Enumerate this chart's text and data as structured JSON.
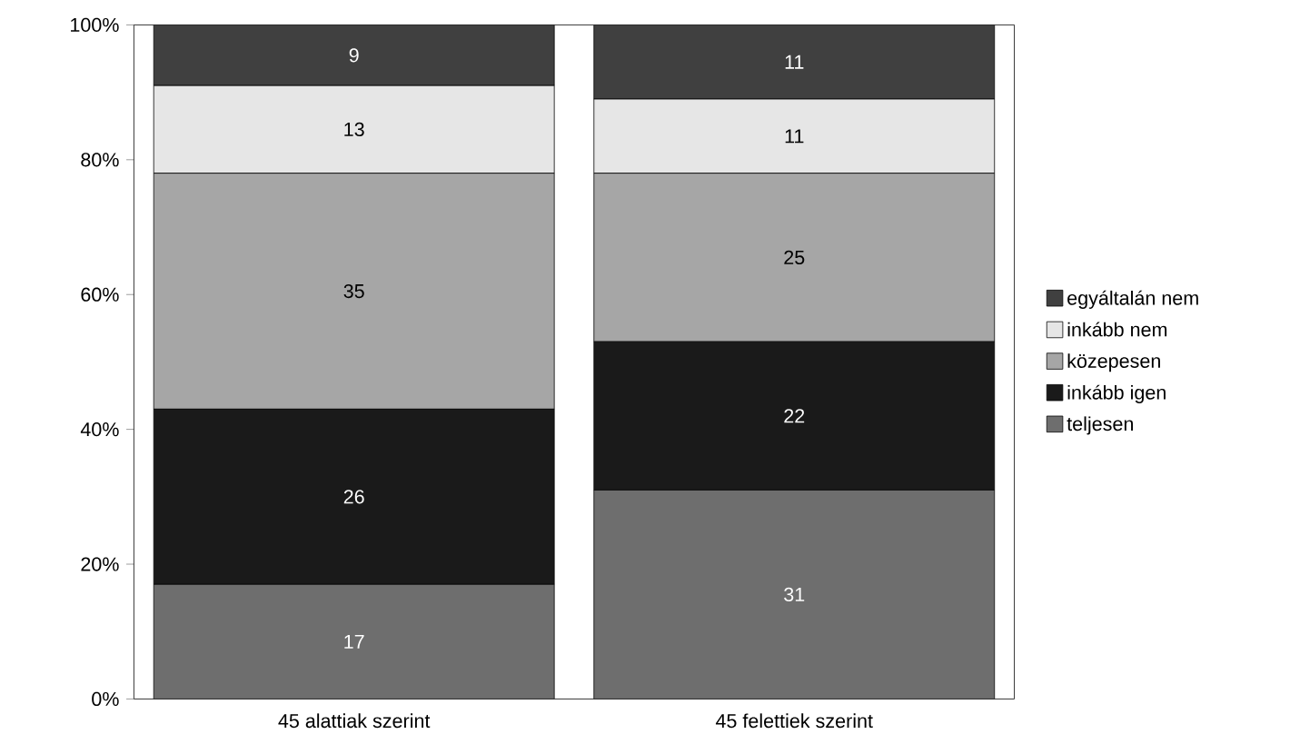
{
  "chart_data": {
    "type": "bar",
    "stacked": true,
    "data_labels": true,
    "legend": "right",
    "grid": false,
    "categories": [
      "45 alattiak szerint",
      "45 felettiek szerint"
    ],
    "ylim": [
      0,
      100
    ],
    "yticks": [
      {
        "value": 0,
        "label": "0%"
      },
      {
        "value": 20,
        "label": "20%"
      },
      {
        "value": 40,
        "label": "40%"
      },
      {
        "value": 60,
        "label": "60%"
      },
      {
        "value": 80,
        "label": "80%"
      },
      {
        "value": 100,
        "label": "100%"
      }
    ],
    "series": [
      {
        "name": "teljesen",
        "color": "#6e6e6e",
        "values": [
          17,
          31
        ]
      },
      {
        "name": "inkább igen",
        "color": "#1a1a1a",
        "values": [
          26,
          22
        ]
      },
      {
        "name": "közepesen",
        "color": "#a6a6a6",
        "values": [
          35,
          25
        ]
      },
      {
        "name": "inkább nem",
        "color": "#e6e6e6",
        "values": [
          13,
          11
        ]
      },
      {
        "name": "egyáltalán nem",
        "color": "#404040",
        "values": [
          9,
          11
        ]
      }
    ]
  }
}
